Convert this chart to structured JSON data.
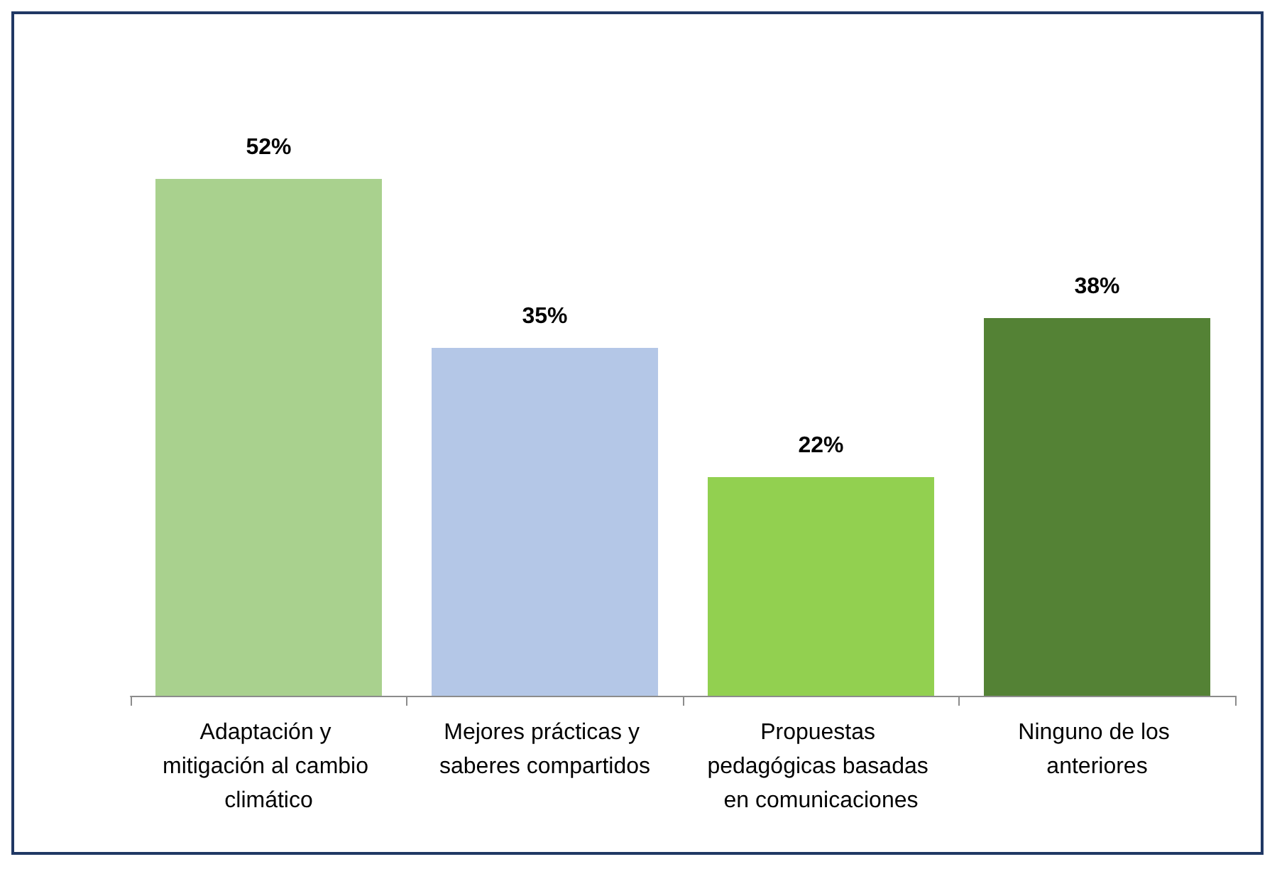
{
  "chart_data": {
    "type": "bar",
    "categories": [
      "Adaptación y mitigación al cambio climático",
      "Mejores prácticas y saberes compartidos",
      "Propuestas pedagógicas basadas en comunicaciones",
      "Ninguno de los anteriores"
    ],
    "values": [
      52,
      35,
      22,
      38
    ],
    "colors": [
      "#a9d18e",
      "#b4c7e7",
      "#92d050",
      "#548235"
    ],
    "value_labels": [
      "52%",
      "35%",
      "22%",
      "38%"
    ],
    "tick_labels": "x"
  }
}
